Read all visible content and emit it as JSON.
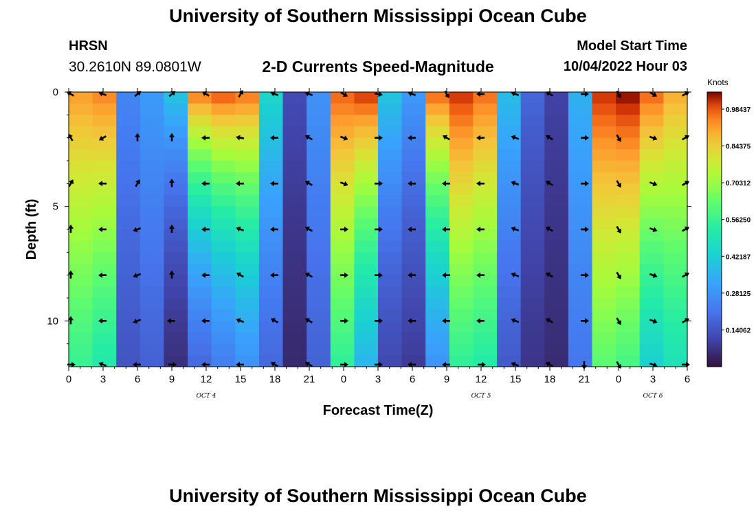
{
  "header": {
    "title": "University of Southern Mississippi Ocean Cube",
    "station": "HRSN",
    "coords": "30.2610N  89.0801W",
    "subtitle": "2-D Currents Speed-Magnitude",
    "start_label": "Model Start Time",
    "start_value": "10/04/2022 Hour 03"
  },
  "footer": {
    "title": "University of Southern Mississippi Ocean Cube"
  },
  "chart_data": {
    "type": "heatmap",
    "title": "2-D Currents Speed-Magnitude",
    "xlabel": "Forecast Time(Z)",
    "ylabel": "Depth (ft)",
    "x_range": [
      0,
      54
    ],
    "y_range": [
      0,
      12
    ],
    "x_ticks": [
      {
        "h": 0,
        "label": "0"
      },
      {
        "h": 3,
        "label": "3"
      },
      {
        "h": 6,
        "label": "6"
      },
      {
        "h": 9,
        "label": "9"
      },
      {
        "h": 12,
        "label": "12"
      },
      {
        "h": 15,
        "label": "15"
      },
      {
        "h": 18,
        "label": "18"
      },
      {
        "h": 21,
        "label": "21"
      },
      {
        "h": 24,
        "label": "0"
      },
      {
        "h": 27,
        "label": "3"
      },
      {
        "h": 30,
        "label": "6"
      },
      {
        "h": 33,
        "label": "9"
      },
      {
        "h": 36,
        "label": "12"
      },
      {
        "h": 39,
        "label": "15"
      },
      {
        "h": 42,
        "label": "18"
      },
      {
        "h": 45,
        "label": "21"
      },
      {
        "h": 48,
        "label": "0"
      },
      {
        "h": 51,
        "label": "3"
      },
      {
        "h": 54,
        "label": "6"
      }
    ],
    "y_ticks": [
      {
        "d": 0,
        "label": "0"
      },
      {
        "d": 5,
        "label": "5"
      },
      {
        "d": 10,
        "label": "10"
      }
    ],
    "date_labels": [
      {
        "h": 12,
        "label": "OCT 4"
      },
      {
        "h": 36,
        "label": "OCT 5"
      },
      {
        "h": 51,
        "label": "OCT 6"
      }
    ],
    "colorbar": {
      "title": "Knots",
      "range": [
        0,
        1.05
      ],
      "ticks": [
        "0.14062",
        "0.28125",
        "0.42187",
        "0.56250",
        "0.70312",
        "0.84375",
        "0.98437"
      ],
      "tick_values": [
        0.140625,
        0.28125,
        0.421875,
        0.5625,
        0.703125,
        0.84375,
        0.984375
      ]
    },
    "time_columns": [
      0,
      3,
      6,
      9,
      12,
      15,
      18,
      21,
      24,
      27,
      30,
      33,
      36,
      39,
      42,
      45,
      48,
      51,
      54
    ],
    "speed_surface": [
      0.92,
      0.95,
      0.25,
      0.3,
      0.4,
      0.97,
      1.0,
      0.97,
      0.45,
      0.12,
      0.28,
      0.98,
      1.02,
      0.4,
      0.3,
      0.98,
      1.02,
      0.97,
      0.38,
      0.18,
      0.1,
      0.35,
      1.02,
      1.05,
      0.98,
      0.9
    ],
    "speed_decay": [
      0.12,
      0.15,
      0.14,
      0.14,
      0.45,
      0.4,
      0.35,
      0.3,
      0.22,
      0.22,
      0.12,
      0.14,
      0.25,
      0.3,
      0.3,
      0.3,
      0.15,
      0.15,
      0.22,
      0.22,
      0.15,
      0.12,
      0.12,
      0.14,
      0.2,
      0.15
    ],
    "vector_depths": [
      0,
      2,
      4,
      6,
      8,
      10,
      12
    ],
    "vectors": [
      [
        210,
        240,
        300,
        270,
        270,
        270,
        0
      ],
      [
        200,
        150,
        180,
        180,
        180,
        180,
        200
      ],
      [
        320,
        270,
        300,
        160,
        160,
        160,
        180
      ],
      [
        320,
        270,
        270,
        270,
        270,
        180,
        0
      ],
      [
        210,
        180,
        180,
        180,
        180,
        180,
        180
      ],
      [
        300,
        190,
        180,
        200,
        210,
        200,
        180
      ],
      [
        200,
        180,
        180,
        180,
        180,
        210,
        210
      ],
      [
        200,
        210,
        210,
        210,
        210,
        210,
        210
      ],
      [
        30,
        20,
        20,
        0,
        0,
        0,
        0
      ],
      [
        10,
        0,
        0,
        0,
        0,
        0,
        0
      ],
      [
        200,
        180,
        180,
        180,
        180,
        180,
        180
      ],
      [
        60,
        210,
        180,
        180,
        180,
        180,
        180
      ],
      [
        180,
        180,
        180,
        180,
        180,
        180,
        0
      ],
      [
        200,
        200,
        200,
        200,
        200,
        200,
        200
      ],
      [
        210,
        210,
        210,
        210,
        210,
        210,
        210
      ],
      [
        0,
        0,
        0,
        0,
        0,
        0,
        90
      ],
      [
        60,
        60,
        60,
        60,
        60,
        60,
        60
      ],
      [
        30,
        20,
        20,
        20,
        20,
        20,
        20
      ],
      [
        330,
        330,
        330,
        330,
        330,
        330,
        0
      ]
    ]
  }
}
